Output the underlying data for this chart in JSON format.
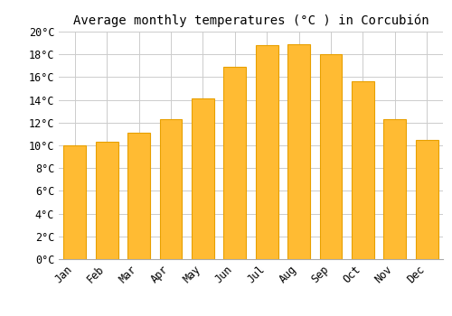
{
  "months": [
    "Jan",
    "Feb",
    "Mar",
    "Apr",
    "May",
    "Jun",
    "Jul",
    "Aug",
    "Sep",
    "Oct",
    "Nov",
    "Dec"
  ],
  "temperatures": [
    10.0,
    10.3,
    11.1,
    12.3,
    14.1,
    16.9,
    18.8,
    18.9,
    18.0,
    15.6,
    12.3,
    10.5
  ],
  "bar_color": "#FFBB33",
  "bar_edge_color": "#E8A000",
  "title": "Average monthly temperatures (°C ) in Corcubión",
  "ylim": [
    0,
    20
  ],
  "ytick_step": 2,
  "background_color": "#FFFFFF",
  "grid_color": "#CCCCCC",
  "title_fontsize": 10,
  "tick_fontsize": 8.5,
  "font_family": "monospace",
  "bar_width": 0.7
}
